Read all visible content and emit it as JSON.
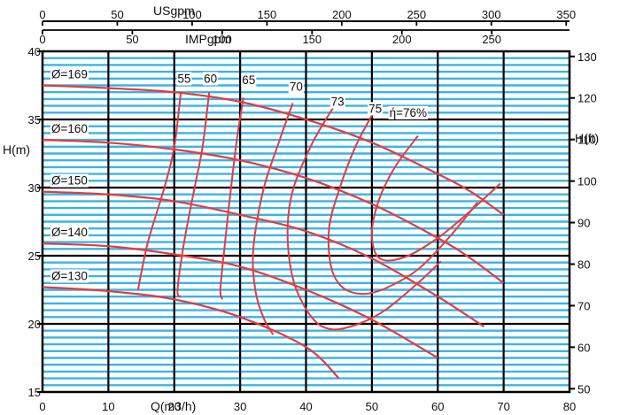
{
  "chart_data": {
    "type": "line",
    "units": {
      "top_outer": "USgpm",
      "top_inner": "IMPgpm",
      "bottom": "Q(m3/h)",
      "left": "H(m)",
      "right": "H(ft)"
    },
    "ticks": {
      "usgpm": [
        0,
        50,
        100,
        150,
        200,
        250,
        300,
        350
      ],
      "impgpm": [
        0,
        50,
        100,
        150,
        200,
        250
      ],
      "q": [
        0,
        10,
        20,
        30,
        40,
        50,
        60,
        70,
        80
      ],
      "h_m": [
        15,
        20,
        25,
        30,
        35,
        40
      ],
      "h_ft": [
        50,
        60,
        70,
        80,
        90,
        100,
        110,
        120,
        130
      ]
    },
    "xlim": [
      0,
      80
    ],
    "ylim": [
      15,
      40
    ],
    "grid": true,
    "series": [
      {
        "name": "Ø=169",
        "x": [
          0,
          10,
          20,
          30,
          40,
          50,
          60,
          65,
          70
        ],
        "y": [
          37.5,
          37.3,
          37.0,
          36.3,
          35.0,
          33.3,
          31.0,
          29.7,
          28.0
        ]
      },
      {
        "name": "Ø=160",
        "x": [
          0,
          10,
          20,
          30,
          40,
          50,
          60,
          65,
          70
        ],
        "y": [
          33.5,
          33.3,
          32.8,
          32.0,
          30.7,
          28.8,
          26.3,
          24.8,
          23.0
        ]
      },
      {
        "name": "Ø=150",
        "x": [
          0,
          10,
          20,
          30,
          40,
          50,
          60,
          67
        ],
        "y": [
          29.7,
          29.5,
          29.0,
          28.0,
          26.8,
          24.8,
          22.0,
          19.8
        ]
      },
      {
        "name": "Ø=140",
        "x": [
          0,
          10,
          20,
          30,
          40,
          50,
          60
        ],
        "y": [
          25.9,
          25.7,
          25.1,
          24.2,
          22.5,
          20.3,
          17.5
        ]
      },
      {
        "name": "Ø=130",
        "x": [
          0,
          10,
          20,
          30,
          40,
          45
        ],
        "y": [
          22.7,
          22.4,
          21.8,
          20.5,
          18.3,
          16.0
        ]
      }
    ],
    "efficiency_labels": [
      {
        "text": "55",
        "x": 21.5,
        "y": 37.7
      },
      {
        "text": "60",
        "x": 25.5,
        "y": 37.7
      },
      {
        "text": "65",
        "x": 31.3,
        "y": 37.6
      },
      {
        "text": "70",
        "x": 38.5,
        "y": 37.1
      },
      {
        "text": "73",
        "x": 44.8,
        "y": 36.0
      },
      {
        "text": "75",
        "x": 50.5,
        "y": 35.5
      },
      {
        "text": "ή=76%",
        "x": 55.5,
        "y": 35.2
      }
    ],
    "efficiency_curves": [
      {
        "label": "55",
        "x": [
          21,
          20,
          18.5,
          16,
          14.5
        ],
        "y": [
          37.0,
          33.0,
          30.0,
          26.0,
          22.5
        ]
      },
      {
        "label": "60",
        "x": [
          25.3,
          24.3,
          23,
          21.5,
          20.5,
          21
        ],
        "y": [
          37.0,
          33.0,
          29.8,
          26.0,
          22.5,
          22.0
        ]
      },
      {
        "label": "65",
        "x": [
          30.5,
          29.5,
          28.5,
          27.6,
          27.0,
          27.3
        ],
        "y": [
          36.6,
          33.5,
          29.5,
          25.5,
          22.5,
          21.8
        ]
      },
      {
        "label": "70",
        "x": [
          38.0,
          36.0,
          33.5,
          32.0,
          32.3,
          33.5,
          35.0
        ],
        "y": [
          36.2,
          33.5,
          29.8,
          25.5,
          22.5,
          20.5,
          19.2
        ]
      },
      {
        "label": "73 (closed)",
        "x": [
          44.3,
          41.0,
          38.0,
          37.2,
          38.2,
          41.0,
          44.0,
          48.0,
          52.0,
          57.0,
          60.5
        ],
        "y": [
          36.0,
          33.3,
          29.8,
          26.5,
          23.0,
          20.4,
          19.6,
          20.0,
          21.0,
          23.0,
          24.6
        ]
      },
      {
        "label": "75 (closed)",
        "x": [
          50.0,
          47.5,
          45.0,
          43.5,
          43.8,
          45.5,
          48.5,
          52.0,
          57.0,
          62.0,
          66.0
        ],
        "y": [
          35.3,
          33.0,
          29.8,
          27.0,
          24.2,
          22.7,
          22.2,
          22.6,
          24.0,
          26.5,
          28.9
        ]
      },
      {
        "label": "76 (closed)",
        "x": [
          57.0,
          53.5,
          51.0,
          50.0,
          51.2,
          55.0,
          60.0,
          65.0,
          69.5
        ],
        "y": [
          33.8,
          31.5,
          29.0,
          26.5,
          24.8,
          24.9,
          26.3,
          28.3,
          30.3
        ]
      }
    ]
  }
}
